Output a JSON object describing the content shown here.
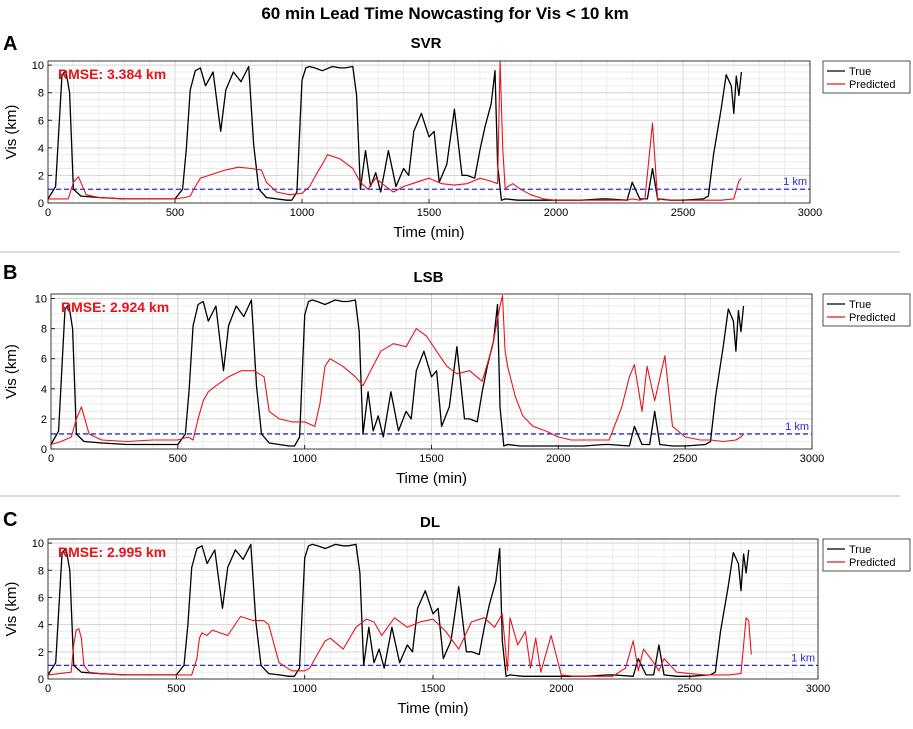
{
  "figure": {
    "title": "60 min Lead Time Nowcasting for Vis < 10 km"
  },
  "colors": {
    "true": "#000000",
    "predicted": "#e8141c",
    "reference": "#2b2bd9",
    "rmse": "#e8141c"
  },
  "chart_data": [
    {
      "type": "line",
      "panel": "A",
      "title": "SVR",
      "rmse_label": "RMSE: 3.384 km",
      "xlabel": "Time (min)",
      "ylabel": "Vis (km)",
      "xlim": [
        0,
        3000
      ],
      "ylim": [
        0,
        10.3
      ],
      "xticks": [
        0,
        500,
        1000,
        1500,
        2000,
        2500,
        3000
      ],
      "yticks": [
        0,
        2,
        4,
        6,
        8,
        10
      ],
      "grid": true,
      "legend": "outside-top-right",
      "reference_line": {
        "y": 1,
        "label": "1 km",
        "style": "dashed"
      },
      "series": [
        {
          "name": "True",
          "color": "#000000",
          "x": [
            0,
            30,
            55,
            70,
            85,
            100,
            130,
            200,
            300,
            400,
            470,
            500,
            530,
            545,
            560,
            580,
            600,
            620,
            650,
            680,
            700,
            730,
            760,
            790,
            810,
            830,
            860,
            900,
            940,
            960,
            980,
            1000,
            1015,
            1030,
            1050,
            1080,
            1120,
            1150,
            1170,
            1200,
            1215,
            1230,
            1250,
            1270,
            1290,
            1310,
            1340,
            1370,
            1400,
            1420,
            1440,
            1470,
            1500,
            1520,
            1540,
            1570,
            1600,
            1630,
            1650,
            1680,
            1700,
            1720,
            1745,
            1760,
            1770,
            1785,
            1800,
            1850,
            1900,
            1950,
            2000,
            2100,
            2180,
            2200,
            2280,
            2300,
            2330,
            2360,
            2380,
            2400,
            2450,
            2500,
            2580,
            2600,
            2620,
            2650,
            2670,
            2690,
            2700,
            2710,
            2720,
            2730
          ],
          "y": [
            0.3,
            1.2,
            9.3,
            9.6,
            8.0,
            1.0,
            0.5,
            0.4,
            0.3,
            0.3,
            0.3,
            0.3,
            1.0,
            4.0,
            8.2,
            9.6,
            9.8,
            8.5,
            9.5,
            5.2,
            8.2,
            9.5,
            8.8,
            9.9,
            4.2,
            1.0,
            0.4,
            0.3,
            0.2,
            0.2,
            0.8,
            8.9,
            9.8,
            9.9,
            9.8,
            9.6,
            9.9,
            9.8,
            9.8,
            9.9,
            7.8,
            1.0,
            3.8,
            1.2,
            2.2,
            0.8,
            3.8,
            1.2,
            2.5,
            2.0,
            5.2,
            6.5,
            4.8,
            5.2,
            1.5,
            2.8,
            6.8,
            2.0,
            2.0,
            1.8,
            3.8,
            5.5,
            7.2,
            9.6,
            2.8,
            0.2,
            0.3,
            0.2,
            0.2,
            0.2,
            0.2,
            0.2,
            0.3,
            0.3,
            0.2,
            1.5,
            0.3,
            0.3,
            2.5,
            0.3,
            0.2,
            0.2,
            0.3,
            0.5,
            3.5,
            6.8,
            9.3,
            8.5,
            6.5,
            9.2,
            7.8,
            9.5
          ]
        },
        {
          "name": "Predicted",
          "color": "#e8141c",
          "x": [
            0,
            80,
            100,
            120,
            150,
            200,
            300,
            400,
            500,
            540,
            560,
            580,
            600,
            650,
            700,
            750,
            800,
            840,
            860,
            900,
            950,
            1000,
            1030,
            1060,
            1080,
            1100,
            1150,
            1200,
            1230,
            1260,
            1290,
            1330,
            1360,
            1400,
            1450,
            1500,
            1550,
            1600,
            1650,
            1700,
            1740,
            1770,
            1780,
            1790,
            1800,
            1810,
            1830,
            1860,
            1900,
            1950,
            2000,
            2050,
            2100,
            2200,
            2280,
            2300,
            2330,
            2350,
            2380,
            2400,
            2420,
            2450,
            2500,
            2560,
            2600,
            2650,
            2700,
            2720,
            2730
          ],
          "y": [
            0.3,
            0.3,
            1.5,
            1.9,
            0.6,
            0.4,
            0.3,
            0.3,
            0.3,
            0.4,
            0.5,
            1.2,
            1.8,
            2.1,
            2.4,
            2.6,
            2.5,
            2.4,
            1.5,
            0.8,
            0.6,
            0.7,
            1.2,
            2.2,
            2.8,
            3.5,
            3.2,
            2.5,
            1.5,
            1.0,
            1.8,
            1.2,
            0.8,
            1.2,
            1.5,
            1.8,
            1.4,
            1.3,
            1.4,
            1.8,
            1.6,
            1.4,
            10.3,
            4.0,
            1.0,
            1.2,
            1.4,
            1.0,
            0.6,
            0.3,
            0.2,
            0.2,
            0.2,
            0.2,
            0.2,
            0.3,
            0.2,
            0.3,
            5.8,
            0.2,
            0.3,
            0.2,
            0.2,
            0.2,
            0.2,
            0.2,
            0.3,
            1.6,
            1.8
          ]
        }
      ]
    },
    {
      "type": "line",
      "panel": "B",
      "title": "LSB",
      "rmse_label": "RMSE: 2.924 km",
      "xlabel": "Time (min)",
      "ylabel": "Vis (km)",
      "xlim": [
        0,
        3000
      ],
      "ylim": [
        0,
        10.3
      ],
      "xticks": [
        0,
        500,
        1000,
        1500,
        2000,
        2500,
        3000
      ],
      "yticks": [
        0,
        2,
        4,
        6,
        8,
        10
      ],
      "grid": true,
      "legend": "outside-top-right",
      "reference_line": {
        "y": 1,
        "label": "1 km",
        "style": "dashed"
      },
      "series": [
        {
          "name": "True",
          "color": "#000000",
          "x": [
            0,
            30,
            55,
            70,
            85,
            100,
            130,
            200,
            300,
            400,
            470,
            500,
            530,
            545,
            560,
            580,
            600,
            620,
            650,
            680,
            700,
            730,
            760,
            790,
            810,
            830,
            860,
            900,
            940,
            960,
            980,
            1000,
            1015,
            1030,
            1050,
            1080,
            1120,
            1150,
            1170,
            1200,
            1215,
            1230,
            1250,
            1270,
            1290,
            1310,
            1340,
            1370,
            1400,
            1420,
            1440,
            1470,
            1500,
            1520,
            1540,
            1570,
            1600,
            1630,
            1650,
            1680,
            1700,
            1720,
            1745,
            1760,
            1770,
            1785,
            1800,
            1850,
            1900,
            1950,
            2000,
            2100,
            2180,
            2200,
            2280,
            2300,
            2330,
            2360,
            2380,
            2400,
            2450,
            2500,
            2580,
            2600,
            2620,
            2650,
            2670,
            2690,
            2700,
            2710,
            2720,
            2730
          ],
          "y": [
            0.3,
            1.2,
            9.3,
            9.6,
            8.0,
            1.0,
            0.5,
            0.4,
            0.3,
            0.3,
            0.3,
            0.3,
            1.0,
            4.0,
            8.2,
            9.6,
            9.8,
            8.5,
            9.5,
            5.2,
            8.2,
            9.5,
            8.8,
            9.9,
            4.2,
            1.0,
            0.4,
            0.3,
            0.2,
            0.2,
            0.8,
            8.9,
            9.8,
            9.9,
            9.8,
            9.6,
            9.9,
            9.8,
            9.8,
            9.9,
            7.8,
            1.0,
            3.8,
            1.2,
            2.2,
            0.8,
            3.8,
            1.2,
            2.5,
            2.0,
            5.2,
            6.5,
            4.8,
            5.2,
            1.5,
            2.8,
            6.8,
            2.0,
            2.0,
            1.8,
            3.8,
            5.5,
            7.2,
            9.6,
            2.8,
            0.2,
            0.3,
            0.2,
            0.2,
            0.2,
            0.2,
            0.2,
            0.3,
            0.3,
            0.2,
            1.5,
            0.3,
            0.3,
            2.5,
            0.3,
            0.2,
            0.2,
            0.3,
            0.5,
            3.5,
            6.8,
            9.3,
            8.5,
            6.5,
            9.2,
            7.8,
            9.5
          ]
        },
        {
          "name": "Predicted",
          "color": "#e8141c",
          "x": [
            0,
            40,
            80,
            100,
            120,
            150,
            200,
            300,
            400,
            500,
            540,
            560,
            580,
            600,
            620,
            650,
            700,
            750,
            800,
            840,
            860,
            900,
            950,
            1000,
            1040,
            1060,
            1080,
            1100,
            1150,
            1200,
            1230,
            1260,
            1300,
            1350,
            1400,
            1440,
            1480,
            1520,
            1560,
            1600,
            1650,
            1700,
            1740,
            1770,
            1780,
            1790,
            1800,
            1830,
            1860,
            1900,
            1950,
            2000,
            2050,
            2100,
            2200,
            2250,
            2280,
            2300,
            2330,
            2350,
            2380,
            2420,
            2450,
            2500,
            2560,
            2600,
            2650,
            2700,
            2720,
            2730
          ],
          "y": [
            0.3,
            0.5,
            0.8,
            2.0,
            2.8,
            1.0,
            0.6,
            0.5,
            0.6,
            0.6,
            0.8,
            0.6,
            2.0,
            3.2,
            3.8,
            4.2,
            4.8,
            5.2,
            5.2,
            4.8,
            2.5,
            2.0,
            1.8,
            1.8,
            1.5,
            3.0,
            5.5,
            6.0,
            5.5,
            4.8,
            4.2,
            5.2,
            6.5,
            7.0,
            6.8,
            8.0,
            7.5,
            6.5,
            5.5,
            5.0,
            5.2,
            4.5,
            6.8,
            9.5,
            10.2,
            6.5,
            5.5,
            3.5,
            2.2,
            1.5,
            1.2,
            0.8,
            0.6,
            0.6,
            0.6,
            2.8,
            4.8,
            5.6,
            2.5,
            5.5,
            3.2,
            6.2,
            1.5,
            0.8,
            0.6,
            0.6,
            0.5,
            0.6,
            0.8,
            1.0
          ]
        }
      ]
    },
    {
      "type": "line",
      "panel": "C",
      "title": "DL",
      "rmse_label": "RMSE: 2.995 km",
      "xlabel": "Time (min)",
      "ylabel": "Vis (km)",
      "xlim": [
        0,
        3000
      ],
      "ylim": [
        0,
        10.3
      ],
      "xticks": [
        0,
        500,
        1000,
        1500,
        2000,
        2500,
        3000
      ],
      "yticks": [
        0,
        2,
        4,
        6,
        8,
        10
      ],
      "grid": true,
      "legend": "outside-top-right",
      "reference_line": {
        "y": 1,
        "label": "1 km",
        "style": "dashed"
      },
      "series": [
        {
          "name": "True",
          "color": "#000000",
          "x": [
            0,
            30,
            55,
            70,
            85,
            100,
            130,
            200,
            300,
            400,
            470,
            500,
            530,
            545,
            560,
            580,
            600,
            620,
            650,
            680,
            700,
            730,
            760,
            790,
            810,
            830,
            860,
            900,
            940,
            960,
            980,
            1000,
            1015,
            1030,
            1050,
            1080,
            1120,
            1150,
            1170,
            1200,
            1215,
            1230,
            1250,
            1270,
            1290,
            1310,
            1340,
            1370,
            1400,
            1420,
            1440,
            1470,
            1500,
            1520,
            1540,
            1570,
            1600,
            1630,
            1650,
            1680,
            1700,
            1720,
            1745,
            1760,
            1770,
            1785,
            1800,
            1850,
            1900,
            1950,
            2000,
            2100,
            2180,
            2200,
            2280,
            2300,
            2330,
            2360,
            2380,
            2400,
            2450,
            2500,
            2580,
            2600,
            2620,
            2650,
            2670,
            2690,
            2700,
            2710,
            2720,
            2730
          ],
          "y": [
            0.3,
            1.2,
            9.3,
            9.6,
            8.0,
            1.0,
            0.5,
            0.4,
            0.3,
            0.3,
            0.3,
            0.3,
            1.0,
            4.0,
            8.2,
            9.6,
            9.8,
            8.5,
            9.5,
            5.2,
            8.2,
            9.5,
            8.8,
            9.9,
            4.2,
            1.0,
            0.4,
            0.3,
            0.2,
            0.2,
            0.8,
            8.9,
            9.8,
            9.9,
            9.8,
            9.6,
            9.9,
            9.8,
            9.8,
            9.9,
            7.8,
            1.0,
            3.8,
            1.2,
            2.2,
            0.8,
            3.8,
            1.2,
            2.5,
            2.0,
            5.2,
            6.5,
            4.8,
            5.2,
            1.5,
            2.8,
            6.8,
            2.0,
            2.0,
            1.8,
            3.8,
            5.5,
            7.2,
            9.6,
            2.8,
            0.2,
            0.3,
            0.2,
            0.2,
            0.2,
            0.2,
            0.2,
            0.3,
            0.3,
            0.2,
            1.5,
            0.3,
            0.3,
            2.5,
            0.3,
            0.2,
            0.2,
            0.3,
            0.5,
            3.5,
            6.8,
            9.3,
            8.5,
            6.5,
            9.2,
            7.8,
            9.5
          ]
        },
        {
          "name": "Predicted",
          "color": "#e8141c",
          "x": [
            0,
            90,
            100,
            110,
            120,
            130,
            140,
            160,
            200,
            300,
            400,
            500,
            560,
            580,
            590,
            600,
            620,
            640,
            700,
            750,
            800,
            840,
            860,
            900,
            950,
            1000,
            1020,
            1040,
            1080,
            1100,
            1150,
            1200,
            1240,
            1270,
            1300,
            1350,
            1400,
            1450,
            1500,
            1550,
            1600,
            1650,
            1700,
            1740,
            1770,
            1790,
            1800,
            1830,
            1860,
            1880,
            1900,
            1920,
            1960,
            2000,
            2050,
            2100,
            2200,
            2250,
            2280,
            2300,
            2320,
            2360,
            2380,
            2400,
            2450,
            2500,
            2560,
            2600,
            2650,
            2700,
            2720,
            2730,
            2740
          ],
          "y": [
            0.3,
            0.5,
            2.5,
            3.6,
            3.7,
            3.0,
            1.0,
            0.5,
            0.4,
            0.3,
            0.3,
            0.3,
            0.3,
            1.5,
            3.0,
            3.4,
            3.2,
            3.6,
            3.2,
            4.6,
            4.3,
            4.3,
            4.0,
            1.2,
            0.6,
            0.6,
            0.8,
            1.5,
            2.8,
            3.0,
            2.2,
            3.8,
            4.4,
            4.2,
            3.2,
            4.5,
            3.8,
            4.2,
            4.4,
            3.5,
            2.2,
            4.2,
            4.5,
            3.8,
            4.8,
            0.6,
            4.5,
            2.5,
            3.5,
            0.8,
            3.0,
            0.5,
            3.2,
            0.3,
            0.2,
            0.2,
            0.2,
            0.8,
            2.8,
            0.6,
            2.2,
            1.2,
            0.6,
            1.5,
            0.5,
            0.4,
            0.3,
            0.3,
            0.3,
            0.4,
            4.5,
            4.3,
            1.8
          ]
        }
      ]
    }
  ]
}
